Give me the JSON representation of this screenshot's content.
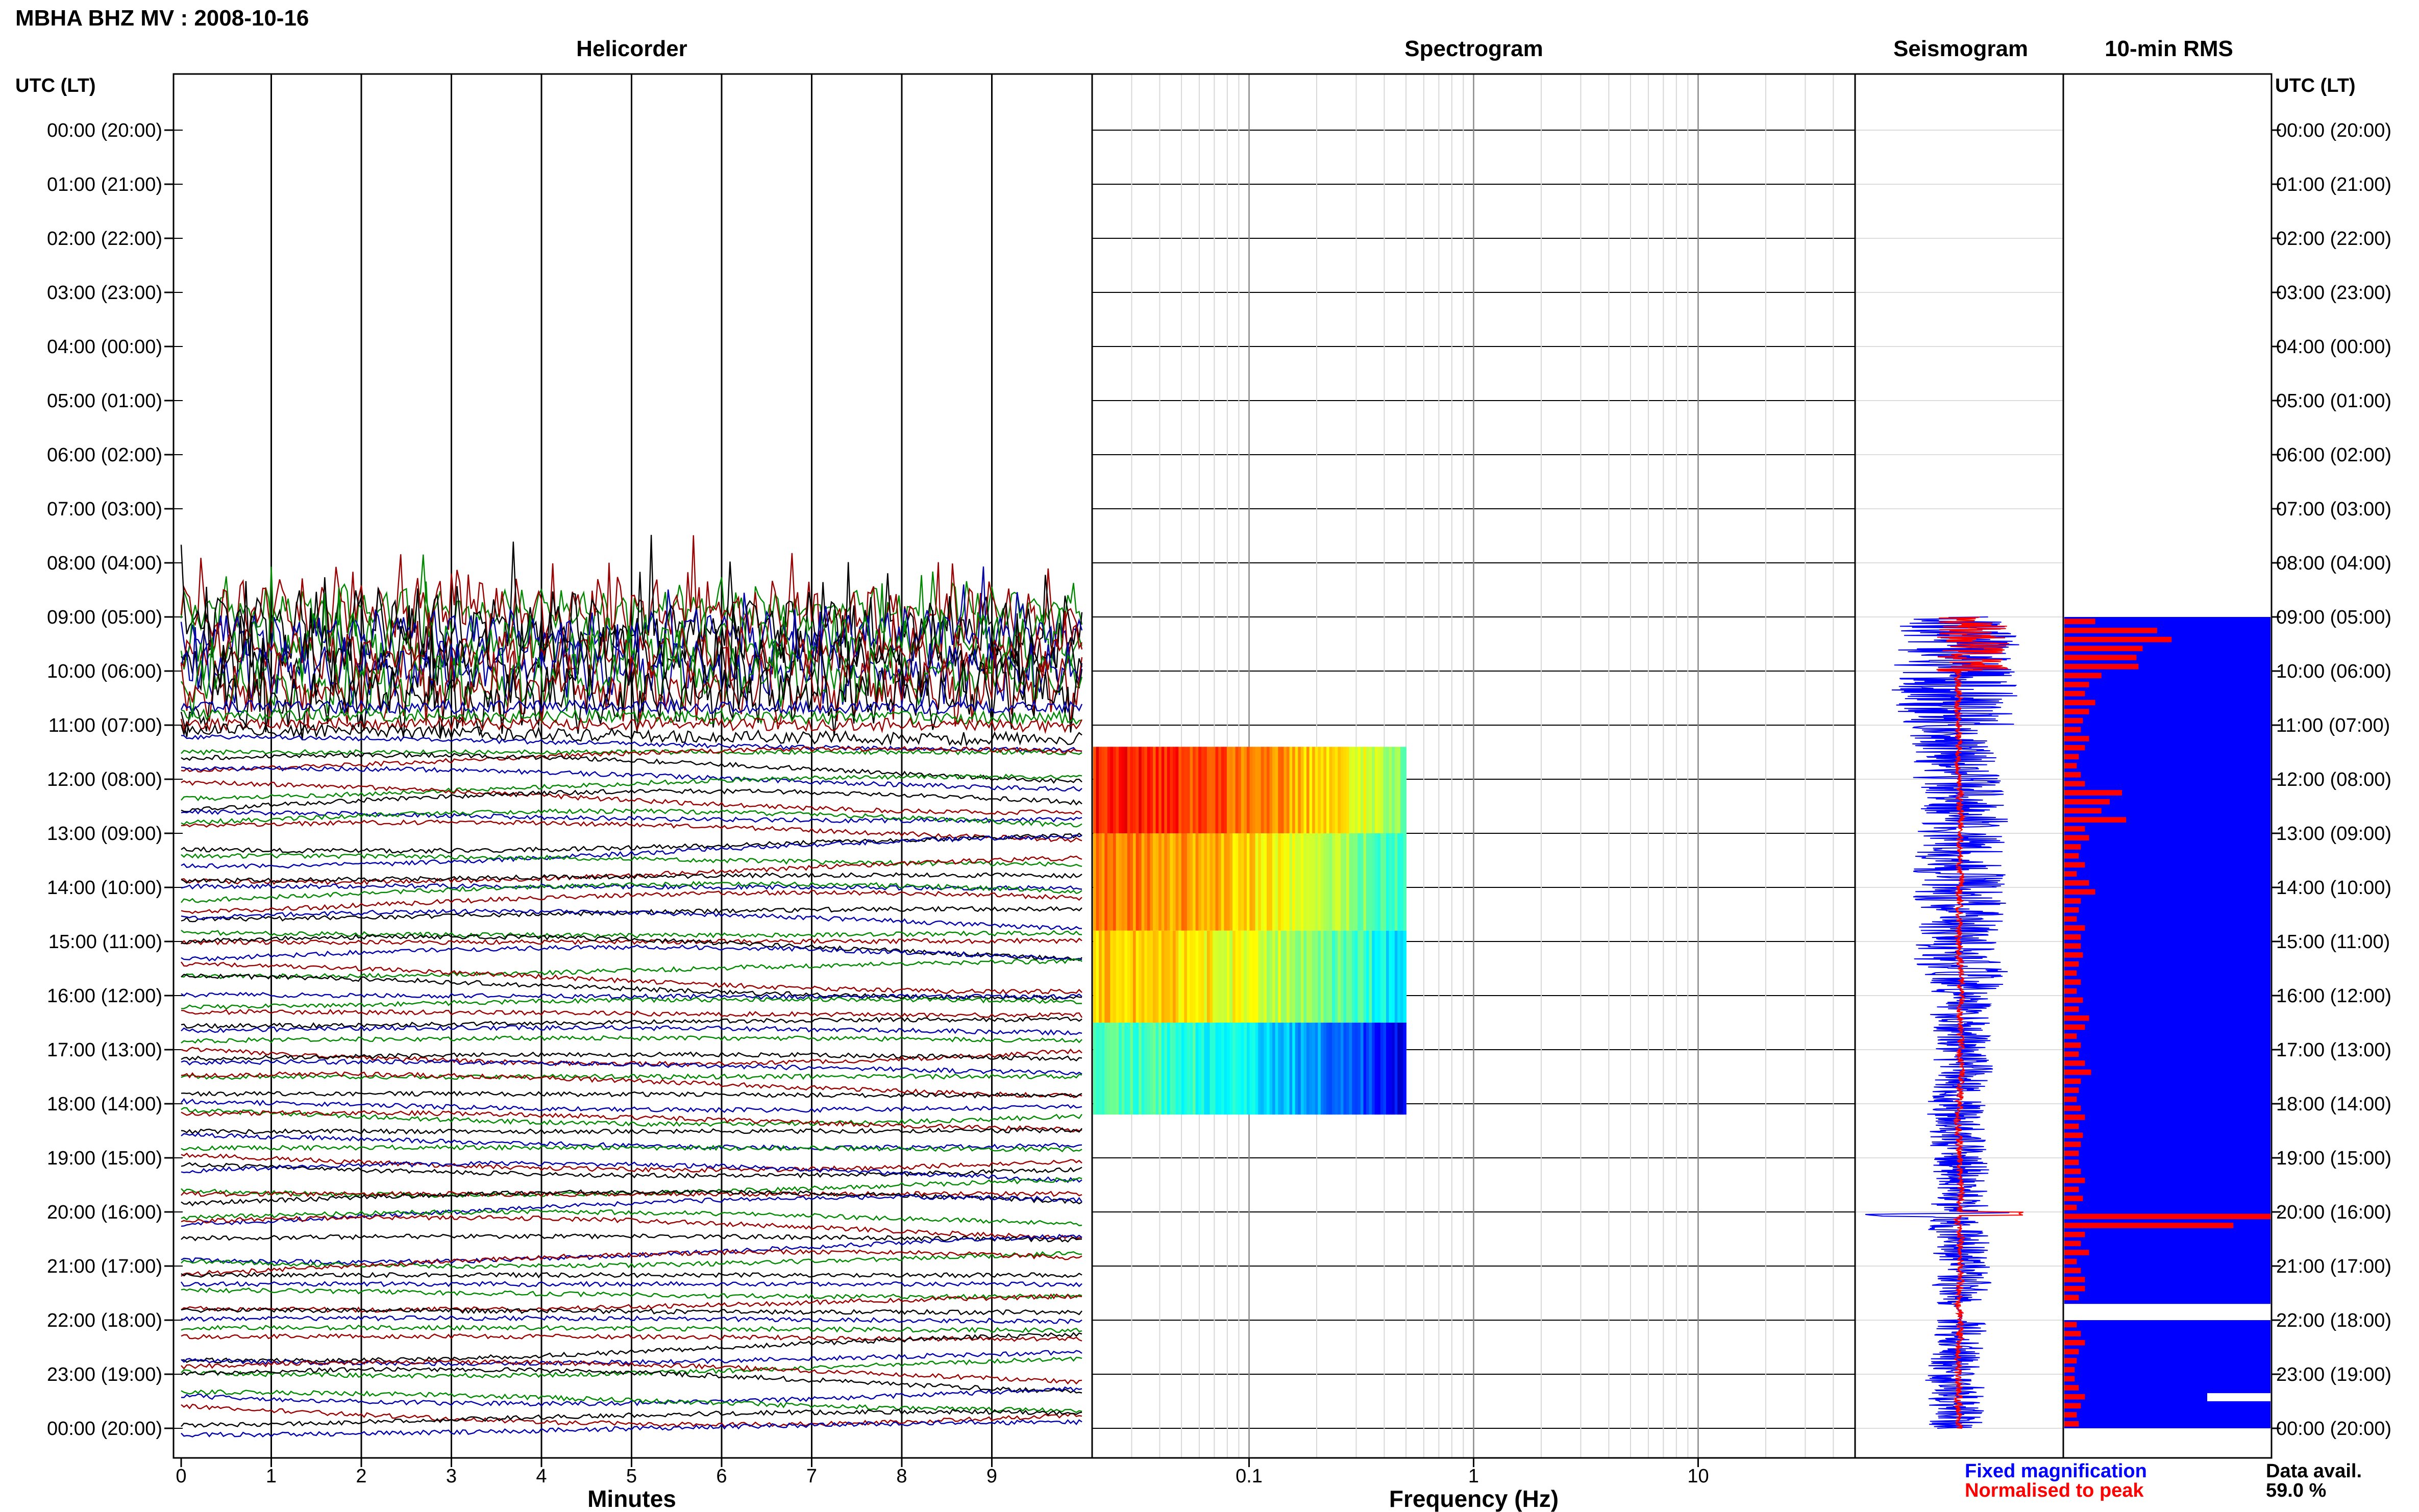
{
  "header": {
    "station_title": "MBHA BHZ MV : 2008-10-16"
  },
  "panels": {
    "helicorder": "Helicorder",
    "spectrogram": "Spectrogram",
    "seismogram": "Seismogram",
    "rms": "10-min RMS"
  },
  "axis": {
    "time_header_left": "UTC (LT)",
    "time_header_right": "UTC (LT)",
    "minutes_label": "Minutes",
    "frequency_label": "Frequency (Hz)"
  },
  "legend": {
    "fixed": "Fixed magnification",
    "normalised": "Normalised to peak",
    "fixed_color": "#0000ff",
    "normalised_color": "#ff0000"
  },
  "data_avail": {
    "label": "Data avail.",
    "value": "59.0 %"
  },
  "chart_data": [
    {
      "type": "line",
      "panel": "helicorder",
      "xlabel": "Minutes",
      "x_ticks": [
        "0",
        "1",
        "2",
        "3",
        "4",
        "5",
        "6",
        "7",
        "8",
        "9"
      ],
      "xlim": [
        0,
        10
      ],
      "row_labels": [
        "00:00 (20:00)",
        "01:00 (21:00)",
        "02:00 (22:00)",
        "03:00 (23:00)",
        "04:00 (00:00)",
        "05:00 (01:00)",
        "06:00 (02:00)",
        "07:00 (03:00)",
        "08:00 (04:00)",
        "09:00 (05:00)",
        "10:00 (06:00)",
        "11:00 (07:00)",
        "12:00 (08:00)",
        "13:00 (09:00)",
        "14:00 (10:00)",
        "15:00 (11:00)",
        "16:00 (12:00)",
        "17:00 (13:00)",
        "18:00 (14:00)",
        "19:00 (15:00)",
        "20:00 (16:00)",
        "21:00 (17:00)",
        "22:00 (18:00)",
        "23:00 (19:00)",
        "00:00 (20:00)"
      ],
      "data_start_hour": 8.85,
      "trace_colors": [
        "#0000aa",
        "#008800",
        "#990000",
        "#000000"
      ]
    },
    {
      "type": "heatmap",
      "panel": "spectrogram",
      "xlabel": "Frequency (Hz)",
      "x_scale": "log",
      "xlim": [
        0.02,
        50
      ],
      "x_ticks": [
        "0.1",
        "1",
        "10"
      ],
      "blocks": [
        {
          "start_hour": 11.4,
          "end_hour": 13.0,
          "level": 0.85
        },
        {
          "start_hour": 13.0,
          "end_hour": 14.8,
          "level": 0.75
        },
        {
          "start_hour": 14.8,
          "end_hour": 16.5,
          "level": 0.68
        },
        {
          "start_hour": 16.5,
          "end_hour": 18.2,
          "level": 0.45
        }
      ],
      "f_max_hz": 0.5
    },
    {
      "type": "line",
      "panel": "seismogram",
      "series": [
        {
          "name": "Fixed magnification",
          "color": "#0000ff"
        },
        {
          "name": "Normalised to peak",
          "color": "#ff0000"
        }
      ],
      "data_start_hour": 9.0
    },
    {
      "type": "bar",
      "panel": "rms",
      "start_hour": 9.0,
      "end_hour": 24.0,
      "bin_minutes": 10,
      "gap_hours": [
        [
          21.7,
          22.0
        ],
        [
          23.35,
          23.5
        ]
      ],
      "values": [
        0.15,
        0.45,
        0.52,
        0.38,
        0.35,
        0.36,
        0.18,
        0.12,
        0.1,
        0.15,
        0.12,
        0.09,
        0.08,
        0.12,
        0.1,
        0.07,
        0.06,
        0.08,
        0.1,
        0.28,
        0.22,
        0.18,
        0.3,
        0.1,
        0.12,
        0.08,
        0.07,
        0.1,
        0.06,
        0.12,
        0.15,
        0.08,
        0.07,
        0.06,
        0.1,
        0.08,
        0.08,
        0.09,
        0.07,
        0.06,
        0.08,
        0.06,
        0.09,
        0.07,
        0.12,
        0.1,
        0.06,
        0.08,
        0.07,
        0.1,
        0.13,
        0.08,
        0.07,
        0.06,
        0.08,
        0.1,
        0.07,
        0.09,
        0.08,
        0.07,
        0.07,
        0.08,
        0.1,
        0.07,
        0.09,
        0.06,
        1.0,
        0.82,
        0.1,
        0.08,
        0.12,
        0.06,
        0.08,
        0.1,
        0.1,
        0.07,
        0.09,
        0.08,
        0.06,
        0.08,
        0.1,
        0.07,
        0.06,
        0.05,
        0.05,
        0.07,
        0.1,
        0.08,
        0.06,
        0.07
      ],
      "color": "#ff0000",
      "background": "#0000ff"
    }
  ]
}
